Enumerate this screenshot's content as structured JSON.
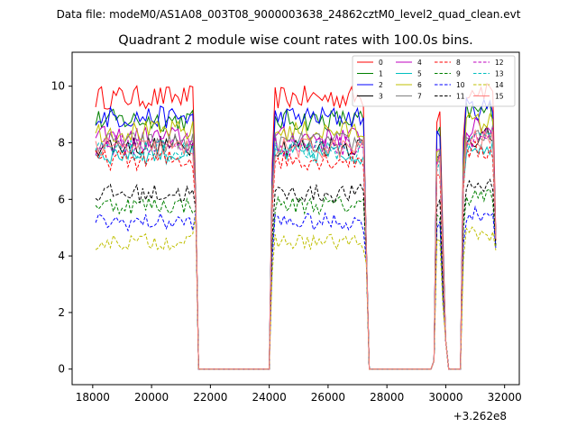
{
  "figure": {
    "suptitle": "Data file: modeM0/AS1A08_003T08_9000003638_24862cztM0_level2_quad_clean.evt",
    "title": "Quadrant 2 module wise count rates with 100.0s bins.",
    "offset_label": "+3.262e8"
  },
  "chart_data": {
    "type": "line",
    "title": "Quadrant 2 module wise count rates with 100.0s bins.",
    "xlabel": "",
    "ylabel": "",
    "x_offset_label": "+3.262e8",
    "xlim": [
      17300,
      32500
    ],
    "ylim": [
      -0.55,
      11.2
    ],
    "xticks": [
      18000,
      20000,
      22000,
      24000,
      26000,
      28000,
      30000,
      32000
    ],
    "xtick_labels": [
      "18000",
      "20000",
      "22000",
      "24000",
      "26000",
      "28000",
      "30000",
      "32000"
    ],
    "yticks": [
      0,
      2,
      4,
      6,
      8,
      10
    ],
    "ytick_labels": [
      "0",
      "2",
      "4",
      "6",
      "8",
      "10"
    ],
    "grid": false,
    "legend_position": "top-right",
    "legend_columns": 4,
    "segments": [
      {
        "start": 18100,
        "end": 21500
      },
      {
        "start": 24100,
        "end": 27300
      },
      {
        "start": 29600,
        "end": 30000
      },
      {
        "start": 30600,
        "end": 31700
      }
    ],
    "gaps": [
      {
        "start": 21600,
        "end": 24000
      },
      {
        "start": 27400,
        "end": 29500
      },
      {
        "start": 30100,
        "end": 30500
      }
    ],
    "segment_end_values": [
      [
        5.8,
        4.1,
        1.0,
        4.5
      ],
      [
        5.4,
        4.0,
        0.9,
        4.3
      ]
    ],
    "series": [
      {
        "name": "0",
        "color": "#ff0000",
        "dash": "solid",
        "level": 9.6
      },
      {
        "name": "1",
        "color": "#008000",
        "dash": "solid",
        "level": 8.8
      },
      {
        "name": "2",
        "color": "#0000ff",
        "dash": "solid",
        "level": 8.9
      },
      {
        "name": "3",
        "color": "#000000",
        "dash": "solid",
        "level": 7.9
      },
      {
        "name": "4",
        "color": "#bf00bf",
        "dash": "solid",
        "level": 8.2
      },
      {
        "name": "5",
        "color": "#00bfbf",
        "dash": "solid",
        "level": 7.6
      },
      {
        "name": "6",
        "color": "#bfbf00",
        "dash": "solid",
        "level": 8.4
      },
      {
        "name": "7",
        "color": "#808080",
        "dash": "solid",
        "level": 8.0
      },
      {
        "name": "8",
        "color": "#ff0000",
        "dash": "dashed",
        "level": 7.4
      },
      {
        "name": "9",
        "color": "#008000",
        "dash": "dashed",
        "level": 5.8
      },
      {
        "name": "10",
        "color": "#0000ff",
        "dash": "dashed",
        "level": 5.2
      },
      {
        "name": "11",
        "color": "#000000",
        "dash": "dashed",
        "level": 6.2
      },
      {
        "name": "12",
        "color": "#bf00bf",
        "dash": "dashed",
        "level": 7.9
      },
      {
        "name": "13",
        "color": "#00bfbf",
        "dash": "dashed",
        "level": 7.7
      },
      {
        "name": "14",
        "color": "#bfbf00",
        "dash": "dashed",
        "level": 4.5
      },
      {
        "name": "15",
        "color": "#ff8080",
        "dash": "solid",
        "level": 7.8
      }
    ]
  }
}
